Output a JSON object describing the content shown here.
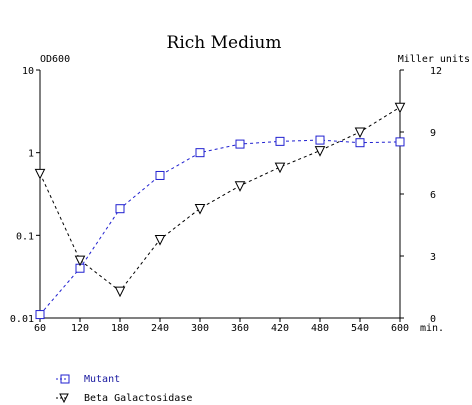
{
  "chart_data": {
    "type": "line",
    "title": "Rich Medium",
    "x": [
      60,
      120,
      180,
      240,
      300,
      360,
      420,
      480,
      540,
      600
    ],
    "x_tick_labels": [
      "60",
      "120",
      "180",
      "240",
      "300",
      "360",
      "420",
      "480",
      "540",
      "600"
    ],
    "x_unit": "min.",
    "xlim": [
      60,
      600
    ],
    "y_left": {
      "label": "OD600",
      "scale": "log",
      "ylim": [
        0.01,
        10
      ],
      "tick_labels": [
        "0.01",
        "0.1",
        "1",
        "10"
      ],
      "tick_values": [
        0.01,
        0.1,
        1,
        10
      ]
    },
    "y_right": {
      "label": "Miller units",
      "scale": "linear",
      "ylim": [
        0,
        12
      ],
      "tick_labels": [
        "0",
        "3",
        "6",
        "9",
        "12"
      ],
      "tick_values": [
        0,
        3,
        6,
        9,
        12
      ]
    },
    "series": [
      {
        "name": "Mutant",
        "axis": "left",
        "marker": "square",
        "color": "#2020d0",
        "values": [
          0.011,
          0.04,
          0.21,
          0.53,
          1.0,
          1.27,
          1.37,
          1.42,
          1.32,
          1.35
        ]
      },
      {
        "name": "Beta Galactosidase",
        "axis": "right",
        "marker": "triangle-down",
        "color": "#000000",
        "values": [
          7.0,
          2.8,
          1.3,
          3.8,
          5.3,
          6.4,
          7.3,
          8.1,
          9.0,
          10.2
        ]
      }
    ],
    "grid": false,
    "legend_position": "bottom-left"
  }
}
